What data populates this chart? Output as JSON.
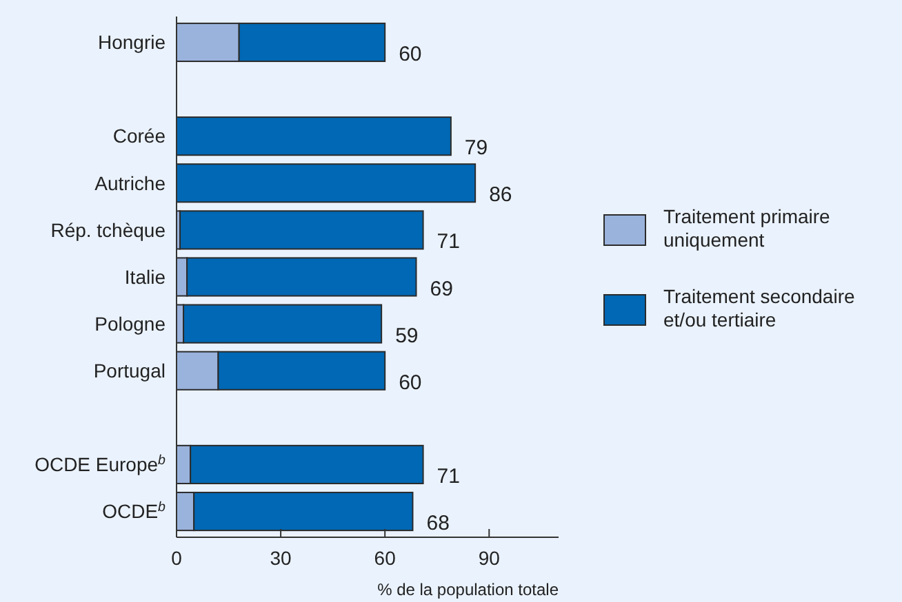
{
  "chart_data": {
    "type": "bar",
    "orientation": "horizontal",
    "stacked": true,
    "xlabel": "% de la population totale",
    "categories": [
      "Hongrie",
      null,
      "Corée",
      "Autriche",
      "Rép. tchèque",
      "Italie",
      "Pologne",
      "Portugal",
      null,
      "OCDE Europe$^{b}$",
      "OCDE$^{b}$"
    ],
    "series": [
      {
        "name": "Traitement primaire uniquement",
        "color": "#9ab3dc",
        "values": [
          18,
          null,
          0,
          0,
          1,
          3,
          2,
          12,
          null,
          4,
          5
        ]
      },
      {
        "name": "Traitement secondaire et/ou tertiaire",
        "color": "#0068b4",
        "values": [
          42,
          null,
          79,
          86,
          70,
          66,
          57,
          48,
          null,
          67,
          63
        ]
      }
    ],
    "totals": [
      "60",
      null,
      "79",
      "86",
      "71",
      "69",
      "59",
      "60",
      null,
      "71",
      "68"
    ],
    "xlim": [
      0,
      110
    ],
    "xticks": [
      0,
      30,
      60,
      90
    ],
    "legend": "right",
    "grid": false
  }
}
